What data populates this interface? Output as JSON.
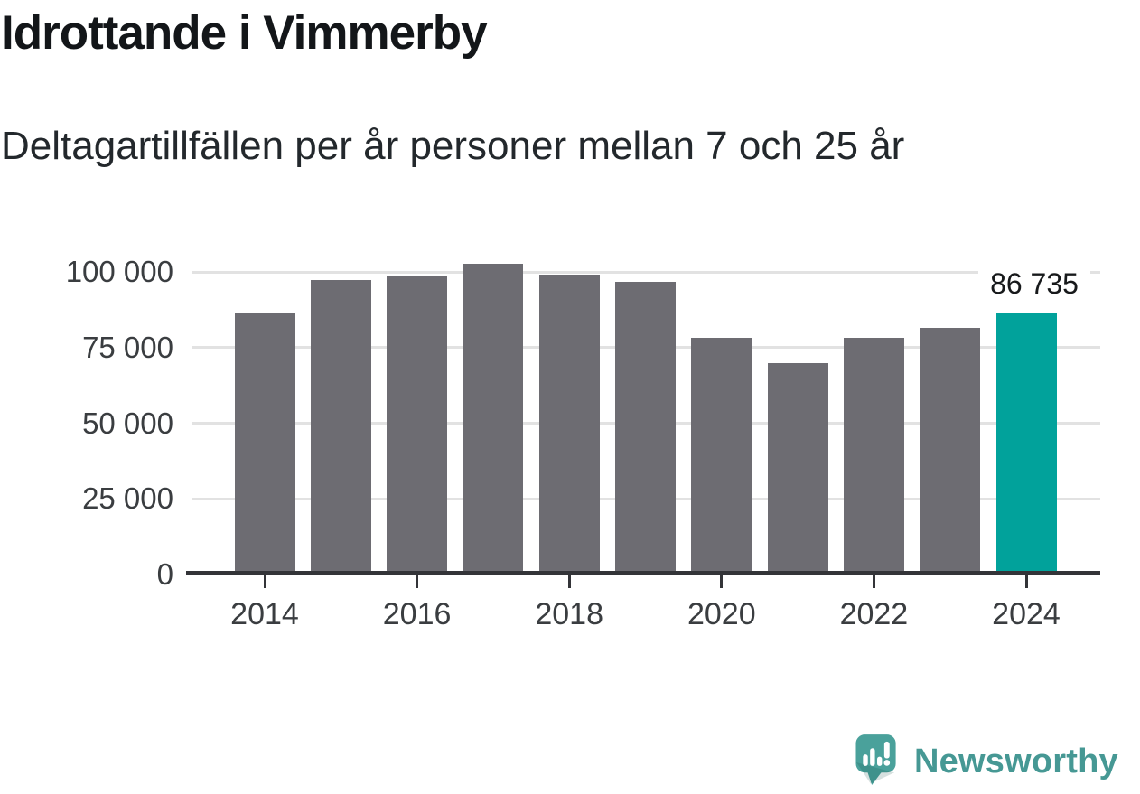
{
  "header": {
    "title": "Idrottande i Vimmerby",
    "subtitle": "Deltagartillfällen per år personer mellan 7 och 25 år"
  },
  "chart_data": {
    "type": "bar",
    "title": "Idrottande i Vimmerby",
    "subtitle": "Deltagartillfällen per år personer mellan 7 och 25 år",
    "categories": [
      "2014",
      "2015",
      "2016",
      "2017",
      "2018",
      "2019",
      "2020",
      "2021",
      "2022",
      "2023",
      "2024"
    ],
    "values": [
      86600,
      97400,
      99000,
      102700,
      99200,
      96700,
      78200,
      70000,
      78200,
      81500,
      86735
    ],
    "highlight_index": 10,
    "highlight_label": "86 735",
    "xlabel": "",
    "ylabel": "",
    "ylim": [
      0,
      105000
    ],
    "grid": true,
    "legend": false,
    "yticks": [
      {
        "value": 0,
        "label": "0"
      },
      {
        "value": 25000,
        "label": "25 000"
      },
      {
        "value": 50000,
        "label": "50 000"
      },
      {
        "value": 75000,
        "label": "75 000"
      },
      {
        "value": 100000,
        "label": "100 000"
      }
    ],
    "xticks": [
      "2014",
      "2016",
      "2018",
      "2020",
      "2022",
      "2024"
    ],
    "bar_color": "#6d6c72",
    "highlight_color": "#01a29b",
    "gridline_color": "#e2e2e2",
    "axis_color": "#333438",
    "label_color": "#3a3d40"
  },
  "footer": {
    "brand": "Newsworthy",
    "brand_color": "#469894",
    "logo_icon": "newsworthy-speech-bubble-bar-chart-icon",
    "logo_color": "#4aa19b"
  }
}
